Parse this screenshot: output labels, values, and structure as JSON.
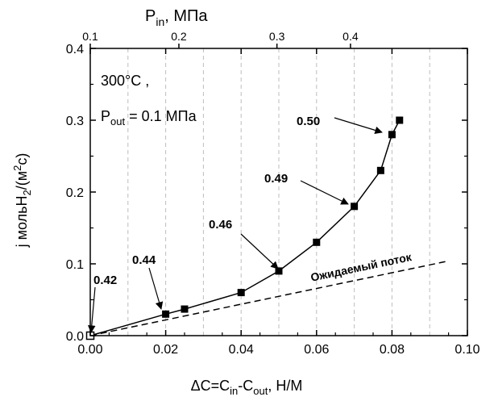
{
  "chart_data": {
    "type": "line",
    "title": "",
    "xlabel": {
      "pre": "ΔC=C",
      "sub1": "in",
      "mid": "-C",
      "sub2": "out",
      "post": ", Н/М"
    },
    "ylabel": {
      "pre": "j мольH",
      "sub": "2",
      "mid": "/(м",
      "sup": "2",
      "post": "c)"
    },
    "top_axis_label": {
      "main": "P",
      "sub": "in",
      "post": ", МПа"
    },
    "xlim": [
      0.0,
      0.1
    ],
    "ylim": [
      0.0,
      0.4
    ],
    "x_ticks": [
      "0.00",
      "0.02",
      "0.04",
      "0.06",
      "0.08",
      "0.10"
    ],
    "y_ticks": [
      "0.0",
      "0.1",
      "0.2",
      "0.3",
      "0.4"
    ],
    "top_ticks": [
      {
        "label": "0.1",
        "x": 0.0
      },
      {
        "label": "0.2",
        "x": 0.0235
      },
      {
        "label": "0.3",
        "x": 0.0495
      },
      {
        "label": "0.4",
        "x": 0.069
      }
    ],
    "grid": "vertical dashed",
    "series": [
      {
        "style": "solid line with square markers",
        "x": [
          0.0,
          0.02,
          0.025,
          0.04,
          0.05,
          0.06,
          0.07,
          0.077,
          0.08,
          0.082
        ],
        "y": [
          0.0,
          0.03,
          0.037,
          0.06,
          0.09,
          0.13,
          0.18,
          0.23,
          0.28,
          0.3
        ]
      },
      {
        "name": "Ожидаемый поток",
        "style": "dashed line",
        "x": [
          0.0,
          0.095
        ],
        "y": [
          0.0,
          0.104
        ]
      }
    ],
    "annotations": [
      {
        "text": "0.42",
        "x": 0.0,
        "y": 0.0
      },
      {
        "text": "0.44",
        "x": 0.02,
        "y": 0.03
      },
      {
        "text": "0.46",
        "x": 0.05,
        "y": 0.09
      },
      {
        "text": "0.49",
        "x": 0.07,
        "y": 0.18
      },
      {
        "text": "0.50",
        "x": 0.08,
        "y": 0.28
      }
    ],
    "info": {
      "temperature": "300°C ,",
      "pout": {
        "main": "P",
        "sub": "out",
        "post": " = 0.1 МПа"
      }
    }
  }
}
